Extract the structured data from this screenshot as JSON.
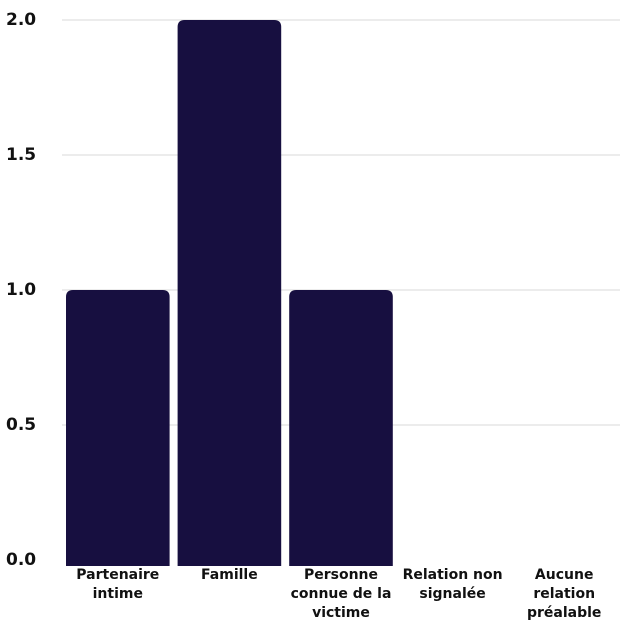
{
  "chart_data": {
    "type": "bar",
    "categories": [
      "Partenaire intime",
      "Famille",
      "Personne connue de la victime",
      "Relation non signalée",
      "Aucune relation préalable"
    ],
    "values": [
      1,
      2,
      1,
      0,
      0
    ],
    "yticks": [
      "0.0",
      "0.5",
      "1.0",
      "1.5",
      "2.0"
    ],
    "ylim": [
      0,
      2
    ],
    "grid": true,
    "colors": {
      "bar": "#170f40",
      "grid": "#d9d9d9",
      "text": "#111111"
    }
  }
}
